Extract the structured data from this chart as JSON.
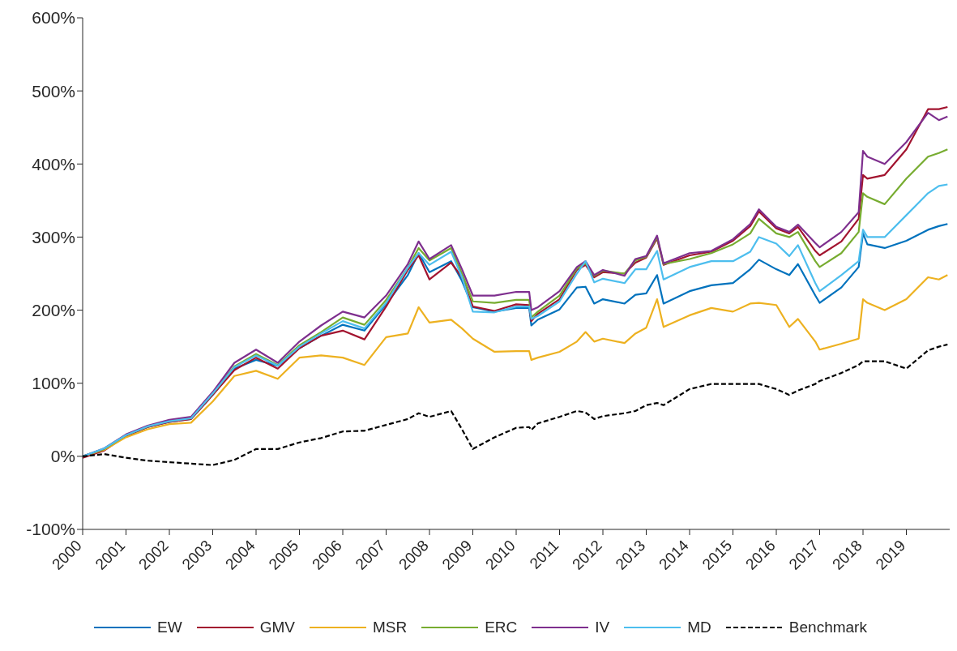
{
  "chart_data": {
    "type": "line",
    "x": [
      2000,
      2000.5,
      2001,
      2001.5,
      2002,
      2002.5,
      2003,
      2003.5,
      2004,
      2004.5,
      2005,
      2005.5,
      2006,
      2006.5,
      2007,
      2007.5,
      2007.75,
      2008,
      2008.5,
      2008.75,
      2009,
      2009.5,
      2010,
      2010.3,
      2010.35,
      2010.5,
      2011,
      2011.4,
      2011.6,
      2011.8,
      2012,
      2012.5,
      2012.75,
      2013,
      2013.25,
      2013.4,
      2014,
      2014.5,
      2015,
      2015.4,
      2015.6,
      2016,
      2016.3,
      2016.5,
      2016.9,
      2017,
      2017.5,
      2017.9,
      2018,
      2018.1,
      2018.5,
      2019,
      2019.5,
      2019.75,
      2019.95
    ],
    "series": [
      {
        "name": "EW",
        "color": "#0072bd",
        "values": [
          0,
          10,
          28,
          40,
          47,
          51,
          84,
          120,
          132,
          124,
          148,
          165,
          180,
          172,
          208,
          248,
          278,
          252,
          267,
          240,
          204,
          198,
          203,
          203,
          179,
          187,
          201,
          231,
          232,
          209,
          215,
          209,
          221,
          223,
          248,
          209,
          226,
          234,
          237,
          256,
          269,
          256,
          248,
          263,
          220,
          210,
          231,
          259,
          305,
          290,
          285,
          295,
          310,
          315,
          318
        ]
      },
      {
        "name": "GMV",
        "color": "#a2142f",
        "values": [
          -2,
          8,
          28,
          40,
          47,
          51,
          84,
          118,
          135,
          120,
          148,
          165,
          172,
          160,
          205,
          255,
          275,
          242,
          265,
          245,
          205,
          199,
          208,
          207,
          185,
          195,
          215,
          255,
          262,
          245,
          252,
          250,
          265,
          272,
          298,
          262,
          275,
          280,
          295,
          315,
          335,
          312,
          305,
          314,
          281,
          275,
          294,
          325,
          385,
          380,
          385,
          420,
          475,
          475,
          478
        ]
      },
      {
        "name": "MSR",
        "color": "#edb120",
        "values": [
          0,
          9,
          26,
          37,
          44,
          46,
          75,
          110,
          117,
          106,
          135,
          138,
          135,
          125,
          163,
          168,
          204,
          183,
          187,
          175,
          161,
          143,
          144,
          144,
          132,
          135,
          143,
          157,
          170,
          157,
          161,
          155,
          168,
          176,
          215,
          177,
          193,
          203,
          198,
          209,
          210,
          207,
          177,
          188,
          157,
          146,
          154,
          161,
          215,
          210,
          200,
          215,
          245,
          242,
          248
        ]
      },
      {
        "name": "ERC",
        "color": "#77ac30",
        "values": [
          0,
          10,
          29,
          41,
          49,
          53,
          86,
          123,
          140,
          125,
          152,
          170,
          190,
          180,
          214,
          258,
          285,
          268,
          285,
          250,
          212,
          210,
          214,
          214,
          190,
          198,
          220,
          257,
          264,
          247,
          254,
          250,
          268,
          273,
          300,
          263,
          270,
          278,
          290,
          305,
          325,
          305,
          300,
          307,
          267,
          259,
          278,
          307,
          360,
          355,
          345,
          380,
          410,
          415,
          420
        ]
      },
      {
        "name": "IV",
        "color": "#7e2f8e",
        "values": [
          0,
          11,
          30,
          42,
          50,
          54,
          88,
          128,
          146,
          128,
          157,
          179,
          198,
          190,
          220,
          263,
          294,
          270,
          289,
          256,
          220,
          220,
          225,
          225,
          200,
          204,
          226,
          259,
          267,
          248,
          255,
          247,
          270,
          274,
          302,
          264,
          278,
          281,
          297,
          318,
          338,
          314,
          307,
          317,
          292,
          286,
          307,
          334,
          418,
          410,
          400,
          430,
          470,
          460,
          465
        ]
      },
      {
        "name": "MD",
        "color": "#4dbeee",
        "values": [
          0,
          11,
          29,
          41,
          48,
          52,
          86,
          122,
          138,
          124,
          150,
          168,
          185,
          175,
          210,
          258,
          278,
          262,
          280,
          245,
          198,
          197,
          205,
          205,
          188,
          192,
          212,
          250,
          267,
          238,
          243,
          237,
          256,
          256,
          281,
          242,
          259,
          267,
          267,
          280,
          300,
          291,
          274,
          289,
          237,
          226,
          248,
          267,
          310,
          300,
          300,
          330,
          360,
          370,
          372
        ]
      },
      {
        "name": "Benchmark",
        "color": "#000000",
        "line_style": "dashed",
        "values": [
          0,
          3,
          -2,
          -6,
          -8,
          -10,
          -12,
          -5,
          10,
          10,
          19,
          25,
          34,
          35,
          43,
          51,
          59,
          54,
          62,
          37,
          10,
          26,
          39,
          40,
          36,
          45,
          54,
          62,
          60,
          51,
          55,
          59,
          62,
          70,
          73,
          70,
          92,
          99,
          99,
          99,
          99,
          92,
          84,
          90,
          99,
          103,
          114,
          125,
          130,
          130,
          130,
          120,
          145,
          150,
          153
        ]
      }
    ],
    "xlim": [
      2000,
      2020
    ],
    "xticks": [
      2000,
      2001,
      2002,
      2003,
      2004,
      2005,
      2006,
      2007,
      2008,
      2009,
      2010,
      2011,
      2012,
      2013,
      2014,
      2015,
      2016,
      2017,
      2018,
      2019
    ],
    "ylim": [
      -100,
      600
    ],
    "yticks": [
      {
        "value": -100,
        "label": "-100%"
      },
      {
        "value": 0,
        "label": "0%"
      },
      {
        "value": 100,
        "label": "100%"
      },
      {
        "value": 200,
        "label": "200%"
      },
      {
        "value": 300,
        "label": "300%"
      },
      {
        "value": 400,
        "label": "400%"
      },
      {
        "value": 500,
        "label": "500%"
      },
      {
        "value": 600,
        "label": "600%"
      }
    ],
    "grid": false,
    "legend": "bottom",
    "marker": "none"
  }
}
